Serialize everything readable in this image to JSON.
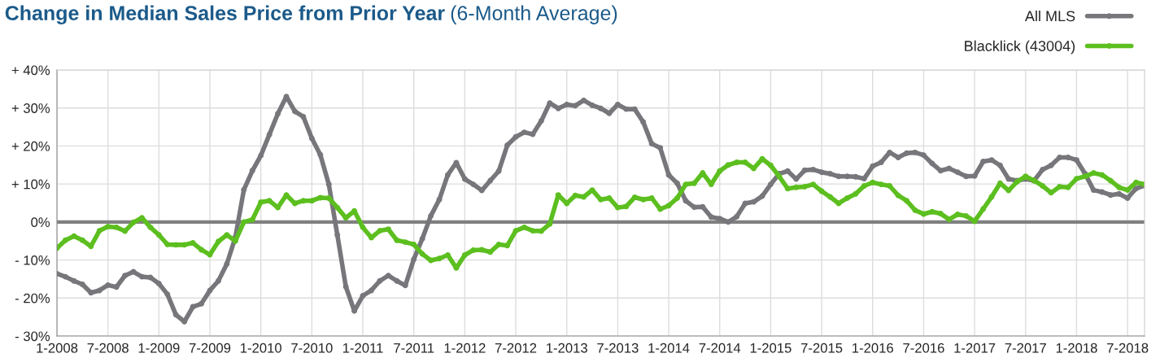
{
  "chart_data": {
    "type": "line",
    "title": "Change in Median Sales Price from Prior Year",
    "subtitle": "(6-Month Average)",
    "categories": [
      "1-2008",
      null,
      null,
      null,
      null,
      null,
      "7-2008",
      null,
      null,
      null,
      null,
      null,
      "1-2009",
      null,
      null,
      null,
      null,
      null,
      "7-2009",
      null,
      null,
      null,
      null,
      null,
      "1-2010",
      null,
      null,
      null,
      null,
      null,
      "7-2010",
      null,
      null,
      null,
      null,
      null,
      "1-2011",
      null,
      null,
      null,
      null,
      null,
      "7-2011",
      null,
      null,
      null,
      null,
      null,
      "1-2012",
      null,
      null,
      null,
      null,
      null,
      "7-2012",
      null,
      null,
      null,
      null,
      null,
      "1-2013",
      null,
      null,
      null,
      null,
      null,
      "7-2013",
      null,
      null,
      null,
      null,
      null,
      "1-2014",
      null,
      null,
      null,
      null,
      null,
      "7-2014",
      null,
      null,
      null,
      null,
      null,
      "1-2015",
      null,
      null,
      null,
      null,
      null,
      "7-2015",
      null,
      null,
      null,
      null,
      null,
      "1-2016",
      null,
      null,
      null,
      null,
      null,
      "7-2016",
      null,
      null,
      null,
      null,
      null,
      "1-2017",
      null,
      null,
      null,
      null,
      null,
      "7-2017",
      null,
      null,
      null,
      null,
      null,
      "1-2018",
      null,
      null,
      null,
      null,
      null,
      "7-2018",
      null,
      null
    ],
    "series": [
      {
        "name": "All MLS",
        "color": "#77767b",
        "values": [
          -13.6,
          -14.4,
          -15.5,
          -16.4,
          -18.6,
          -18,
          -16.6,
          -17.1,
          -14.1,
          -13.1,
          -14.4,
          -14.6,
          -16.2,
          -19,
          -24.4,
          -26.2,
          -22.3,
          -21.5,
          -18,
          -15.5,
          -11,
          -4,
          8.5,
          13.5,
          17.5,
          23,
          28.5,
          33,
          29.1,
          27.7,
          22,
          17.7,
          9.9,
          -3.4,
          -17,
          -23.4,
          -19.4,
          -18,
          -15.5,
          -14.1,
          -15.5,
          -16.7,
          -9.8,
          -4.4,
          1.6,
          5.9,
          12.4,
          15.6,
          11.3,
          9.9,
          8.3,
          10.9,
          13.4,
          20.2,
          22.4,
          23.6,
          23.1,
          26.6,
          31.3,
          29.9,
          30.9,
          30.6,
          32,
          30.7,
          29.9,
          28.6,
          30.9,
          29.7,
          29.7,
          26.3,
          20.6,
          19.5,
          12.4,
          10.2,
          5.6,
          3.9,
          4,
          1.3,
          0.9,
          0,
          1.4,
          4.9,
          5.3,
          6.8,
          9.9,
          12.7,
          13.4,
          11.3,
          13.6,
          13.8,
          13.1,
          12.7,
          12,
          12,
          11.9,
          11.4,
          14.7,
          15.7,
          18.3,
          17,
          18.1,
          18.3,
          17.6,
          15.4,
          13.5,
          14.1,
          13.1,
          12,
          12.1,
          15.9,
          16.3,
          14.9,
          11.3,
          10.9,
          11.3,
          10.9,
          13.8,
          14.9,
          17,
          17,
          16.3,
          12.7,
          8.4,
          7.9,
          7.1,
          7.4,
          6.3,
          8.8,
          9.6
        ]
      },
      {
        "name": "Blacklick (43004)",
        "color": "#5cbf1f",
        "values": [
          -6.9,
          -4.8,
          -3.7,
          -4.8,
          -6.4,
          -2.3,
          -1.2,
          -1.4,
          -2.4,
          -0.1,
          1.1,
          -1.4,
          -3.4,
          -5.9,
          -6,
          -6,
          -5.5,
          -7.3,
          -8.6,
          -5.1,
          -3.4,
          -5,
          0,
          0.6,
          5.2,
          5.6,
          3.8,
          7.1,
          4.9,
          5.6,
          5.6,
          6.4,
          6.3,
          3.8,
          1.1,
          2.9,
          -1.4,
          -4.1,
          -2.3,
          -1.9,
          -4.8,
          -5.3,
          -5.9,
          -8.4,
          -10.1,
          -9.6,
          -8.7,
          -12.1,
          -8.7,
          -7.4,
          -7.3,
          -7.9,
          -5.9,
          -6.2,
          -2.3,
          -1.4,
          -2.3,
          -2.4,
          -0.5,
          7.1,
          4.9,
          7,
          6.6,
          8.4,
          5.9,
          6.3,
          3.8,
          4.1,
          6.5,
          5.9,
          6.3,
          3.4,
          4.3,
          6.3,
          9.9,
          10.2,
          12.9,
          9.9,
          13.4,
          15,
          15.7,
          15.7,
          14.1,
          16.6,
          14.9,
          12,
          8.8,
          9.1,
          9.3,
          9.9,
          8.1,
          6.6,
          4.9,
          6.3,
          7.4,
          9.5,
          10.4,
          9.9,
          9.5,
          7,
          5.6,
          3.1,
          2.1,
          2.7,
          2.2,
          0.7,
          2,
          1.6,
          0.2,
          3.4,
          6.6,
          10.2,
          8.3,
          10.6,
          12,
          10.9,
          9.5,
          7.7,
          9.3,
          9.1,
          11.4,
          12,
          12.9,
          12.4,
          10.9,
          9.1,
          8.4,
          10.4,
          9.9
        ]
      }
    ],
    "ylim": [
      -30,
      40
    ],
    "yticks": [
      {
        "value": -30,
        "label": "- 30%"
      },
      {
        "value": -20,
        "label": "- 20%"
      },
      {
        "value": -10,
        "label": "- 10%"
      },
      {
        "value": 0,
        "label": "0%"
      },
      {
        "value": 10,
        "label": "+ 10%"
      },
      {
        "value": 20,
        "label": "+ 20%"
      },
      {
        "value": 30,
        "label": "+ 30%"
      },
      {
        "value": 40,
        "label": "+ 40%"
      }
    ],
    "ref_lines": [
      {
        "axis": "y",
        "value": 0,
        "color": "#808080"
      }
    ],
    "grid": true,
    "legend": "top right",
    "marker": "circle",
    "line_style": "solid"
  }
}
